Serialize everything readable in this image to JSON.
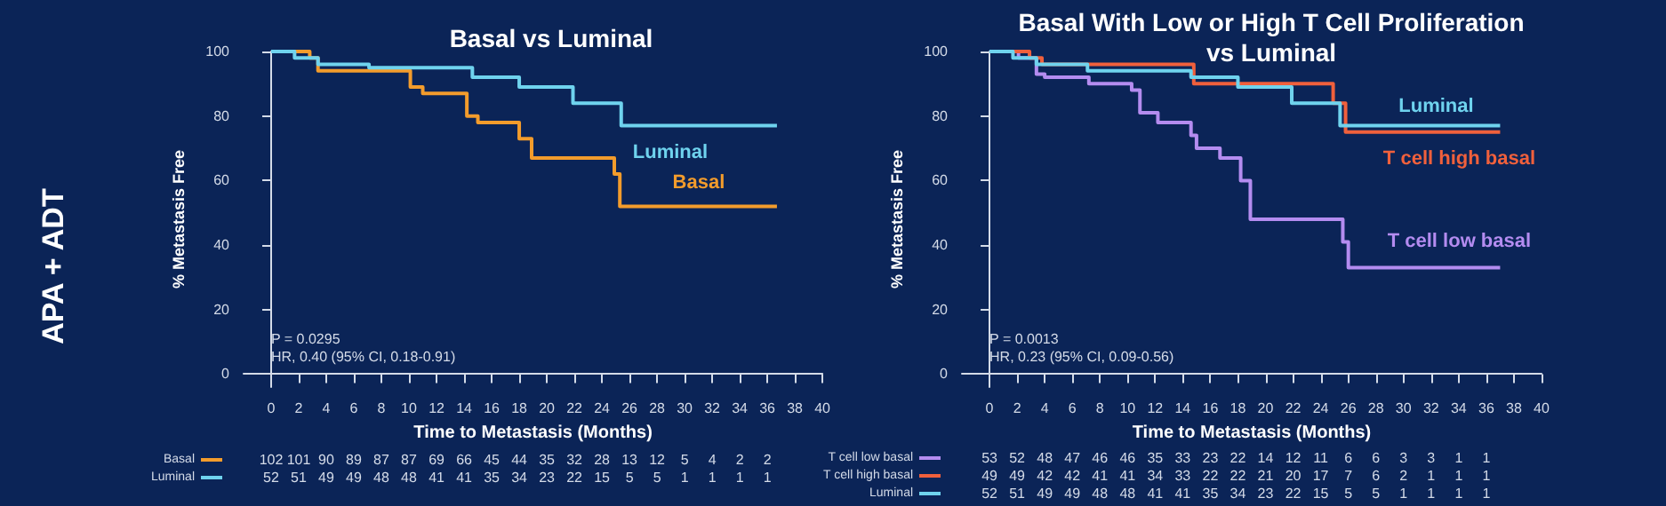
{
  "chart_data": [
    {
      "type": "step",
      "title": "Basal vs Luminal",
      "xlabel": "Time to Metastasis (Months)",
      "ylabel": "% Metastasis Free",
      "xlim": [
        -2,
        40
      ],
      "xticks": [
        0,
        2,
        4,
        6,
        8,
        10,
        12,
        14,
        16,
        18,
        20,
        22,
        24,
        26,
        28,
        30,
        32,
        34,
        36,
        38,
        40
      ],
      "ylim": [
        -4,
        100
      ],
      "yticks": [
        0,
        20,
        40,
        60,
        80,
        100
      ],
      "legend": false,
      "marker": "none",
      "series": [
        {
          "name": "Basal",
          "color": "#f39c2c",
          "x": [
            0,
            2.8,
            3.4,
            10.1,
            11,
            14.2,
            15,
            18,
            18.9,
            24.9,
            25.3,
            36.7
          ],
          "values": [
            100,
            98,
            94,
            89,
            87,
            80,
            78,
            73,
            67,
            62,
            52,
            52
          ]
        },
        {
          "name": "Luminal",
          "color": "#6fd3ee",
          "x": [
            0,
            1.7,
            3.4,
            7.1,
            14.6,
            18,
            21.9,
            25.4,
            36.7
          ],
          "values": [
            100,
            98,
            96,
            95,
            92,
            89,
            84,
            77,
            77
          ]
        }
      ],
      "annotations": [
        "P = 0.0295",
        "HR, 0.40 (95% CI, 0.18-0.91)",
        "Basal 102 101 90 89 87 87 69 66 45 44 35 32 28 13 12 5 4 2 2",
        "Luminal 52 51 49 49 48 48 41 41 35 34 23 22 15 5 5 1 1 1 1",
        "APA + ADT"
      ]
    },
    {
      "type": "step",
      "title": "Basal With Low or High T Cell Proliferation\nvs Luminal",
      "xlabel": "Time to Metastasis (Months)",
      "ylabel": "% Metastasis Free",
      "xlim": [
        -2,
        40
      ],
      "xticks": [
        0,
        2,
        4,
        6,
        8,
        10,
        12,
        14,
        16,
        18,
        20,
        22,
        24,
        26,
        28,
        30,
        32,
        34,
        36,
        38,
        40
      ],
      "ylim": [
        -4,
        100
      ],
      "yticks": [
        0,
        20,
        40,
        60,
        80,
        100
      ],
      "legend": false,
      "marker": "none",
      "series": [
        {
          "name": "T cell low basal",
          "color": "#b48cf0",
          "x": [
            0,
            2.1,
            3.4,
            4,
            7.2,
            10.3,
            10.9,
            12.2,
            14.6,
            15,
            16.7,
            18.2,
            18.9,
            25.6,
            26,
            37
          ],
          "values": [
            100,
            98,
            93,
            92,
            90,
            88,
            81,
            78,
            74,
            70,
            67,
            60,
            48,
            41,
            33,
            33
          ]
        },
        {
          "name": "T cell high basal",
          "color": "#f0603c",
          "x": [
            0,
            2.9,
            3.8,
            14.8,
            24.9,
            25.8,
            37
          ],
          "values": [
            100,
            98,
            96,
            90,
            84,
            75,
            75
          ]
        },
        {
          "name": "Luminal",
          "color": "#6fd3ee",
          "x": [
            0,
            1.7,
            3.4,
            7.1,
            14.6,
            18,
            21.9,
            25.4,
            37
          ],
          "values": [
            100,
            98,
            96,
            94,
            92,
            89,
            84,
            77,
            77
          ]
        }
      ],
      "annotations": [
        "P = 0.0013",
        "HR, 0.23 (95% CI, 0.09-0.56)",
        "T cell low basal 53 52 48 47 46 46 35 33 23 22 14 12 11 6 6 3 3 1 1",
        "T cell high basal 49 49 42 42 41 41 34 33 22 22 21 20 17 7 6 2 1 1 1",
        "Luminal 52 51 49 49 48 48 41 41 35 34 23 22 15 5 5 1 1 1 1"
      ]
    }
  ]
}
